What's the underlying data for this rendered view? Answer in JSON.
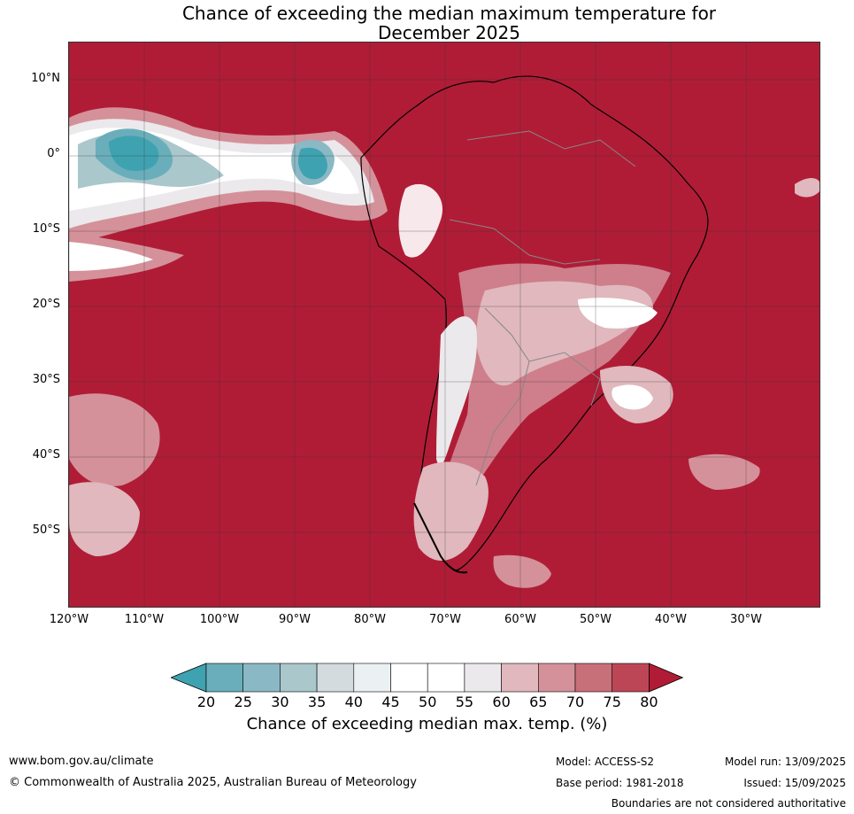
{
  "title": {
    "line1": "Chance of exceeding the median maximum temperature for",
    "line2": "December 2025"
  },
  "map": {
    "region": "South America and surrounding oceans",
    "lat_labels": [
      "10°N",
      "0°",
      "10°S",
      "20°S",
      "30°S",
      "40°S",
      "50°S"
    ],
    "lon_labels": [
      "120°W",
      "110°W",
      "100°W",
      "90°W",
      "80°W",
      "70°W",
      "60°W",
      "50°W",
      "40°W",
      "30°W"
    ],
    "background_color": "#b01c36",
    "land_outline_color": "#000000",
    "border_color": "#888888",
    "grid_color": "#333333"
  },
  "colorbar": {
    "ticks": [
      "20",
      "25",
      "30",
      "35",
      "40",
      "45",
      "50",
      "55",
      "60",
      "65",
      "70",
      "75",
      "80"
    ],
    "colors": [
      "#3fa2b0",
      "#6aaebb",
      "#8ab9c5",
      "#aac7cc",
      "#d3dbdf",
      "#ebf0f3",
      "#ffffff",
      "#ffffff",
      "#ebe9eb",
      "#e0b8bd",
      "#d4919a",
      "#c8707a",
      "#bd4656",
      "#b01c36"
    ],
    "label": "Chance of exceeding median max. temp. (%)"
  },
  "footer": {
    "url": "www.bom.gov.au/climate",
    "copyright": "© Commonwealth of Australia 2025, Australian Bureau of Meteorology",
    "model": "Model: ACCESS-S2",
    "base_period": "Base period: 1981-2018",
    "model_run": "Model run: 13/09/2025",
    "issued": "Issued: 15/09/2025",
    "disclaimer": "Boundaries are not considered authoritative"
  }
}
